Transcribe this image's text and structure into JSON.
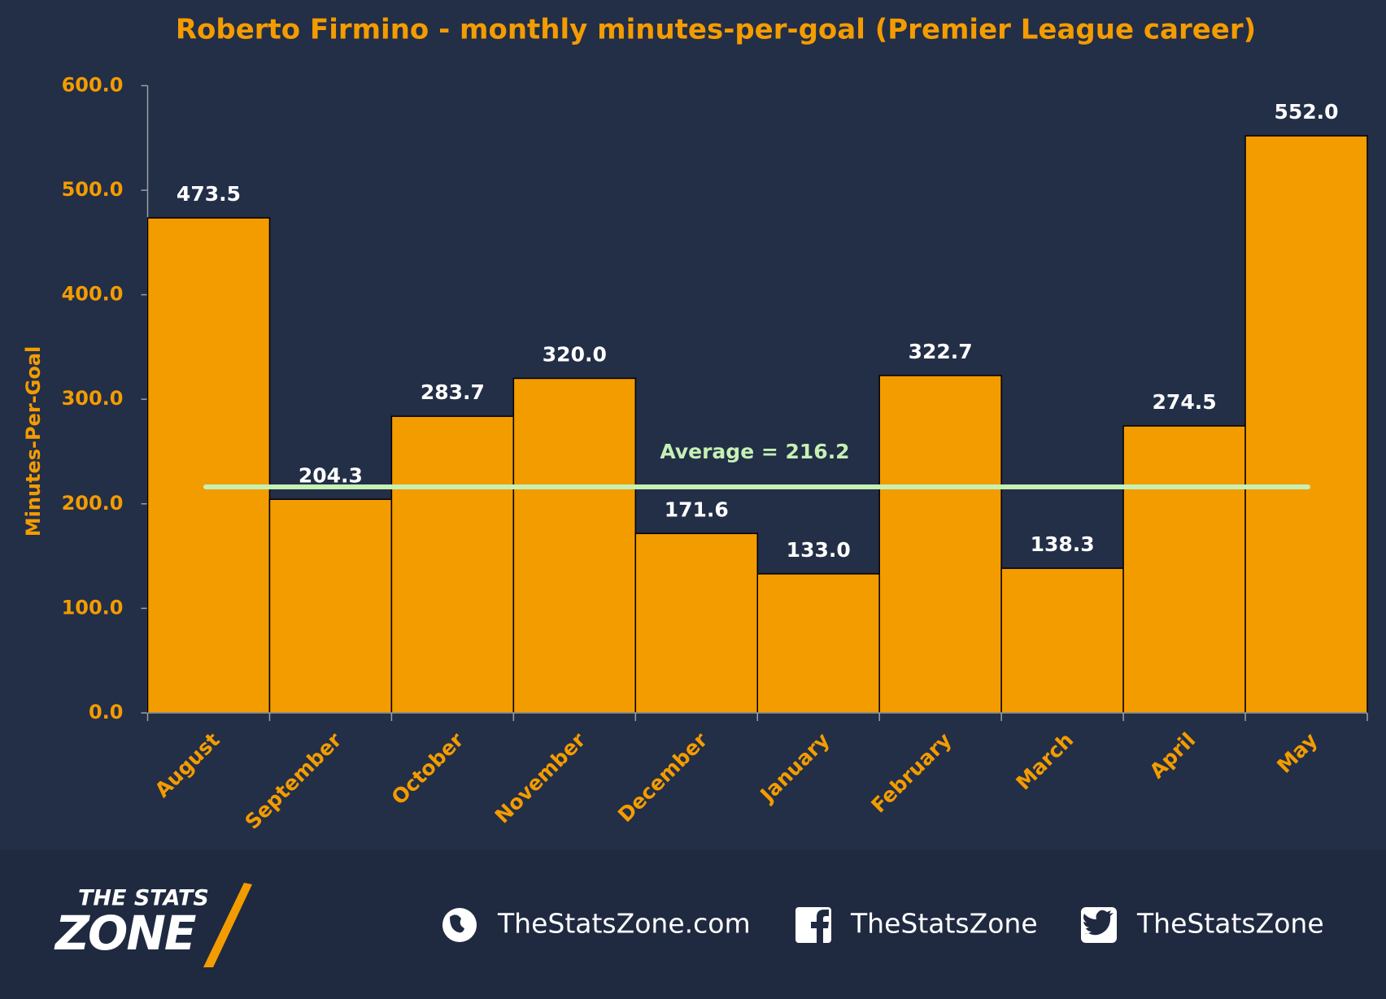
{
  "chart_data": {
    "type": "bar",
    "title": "Roberto Firmino - monthly minutes-per-goal (Premier League career)",
    "y_label": "Minutes-Per-Goal",
    "categories": [
      "August",
      "September",
      "October",
      "November",
      "December",
      "January",
      "February",
      "March",
      "April",
      "May"
    ],
    "values": [
      473.5,
      204.3,
      283.7,
      320.0,
      171.6,
      133.0,
      322.7,
      138.3,
      274.5,
      552.0
    ],
    "value_labels": [
      "473.5",
      "204.3",
      "283.7",
      "320.0",
      "171.6",
      "133.0",
      "322.7",
      "138.3",
      "274.5",
      "552.0"
    ],
    "color": "#f39c00",
    "ylim": [
      0,
      600
    ],
    "yticks": [
      {
        "value": 0,
        "label": "0.0"
      },
      {
        "value": 100,
        "label": "100.0"
      },
      {
        "value": 200,
        "label": "200.0"
      },
      {
        "value": 300,
        "label": "300.0"
      },
      {
        "value": 400,
        "label": "400.0"
      },
      {
        "value": 500,
        "label": "500.0"
      },
      {
        "value": 600,
        "label": "600.0"
      }
    ],
    "average": {
      "value": 216.2,
      "label": "Average = 216.2",
      "color": "#c6f0b4"
    }
  },
  "footer": {
    "logo_top": "THE STATS",
    "logo_bottom": "ZONE",
    "website": "TheStatsZone.com",
    "facebook": "TheStatsZone",
    "twitter": "TheStatsZone"
  }
}
